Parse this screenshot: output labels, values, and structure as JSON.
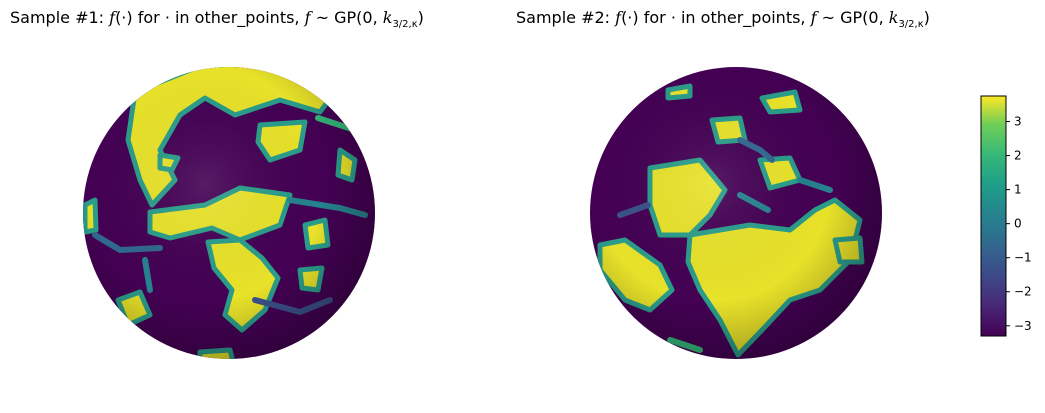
{
  "chart_data": [
    {
      "type": "heatmap",
      "surface": "sphere",
      "title": {
        "prefix": "Sample #1: ",
        "f": "f",
        "arg": "(·)",
        "mid": " for · in other_points, ",
        "f2": "f",
        "tilde": " ~ GP(0, ",
        "k": "k",
        "sub": "3/2,κ",
        "close": ")"
      }
    },
    {
      "type": "heatmap",
      "surface": "sphere",
      "title": {
        "prefix": "Sample #2: ",
        "f": "f",
        "arg": "(·)",
        "mid": " for · in other_points, ",
        "f2": "f",
        "tilde": " ~ GP(0, ",
        "k": "k",
        "sub": "3/2,κ",
        "close": ")"
      }
    }
  ],
  "colorbar": {
    "colormap": "viridis",
    "vmin": -3.3,
    "vmax": 3.75,
    "ticks": [
      -3,
      -2,
      -1,
      0,
      1,
      2,
      3
    ],
    "tick_labels": [
      "−3",
      "−2",
      "−1",
      "0",
      "1",
      "2",
      "3"
    ]
  },
  "colors": {
    "low": "#440154",
    "mid_low": "#3b528b",
    "mid": "#21918c",
    "mid_high": "#5ec962",
    "high": "#fde725"
  }
}
